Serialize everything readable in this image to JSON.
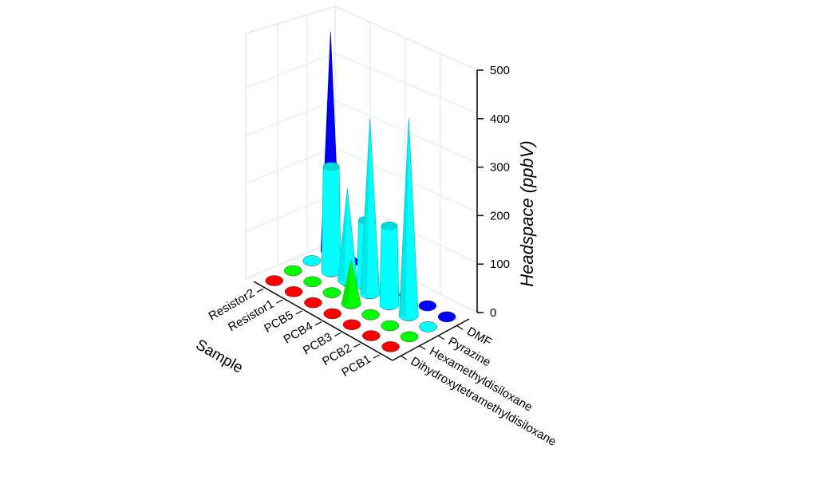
{
  "chart_data": {
    "type": "3d-bar",
    "zlabel": "Headspace (ppbV)",
    "xlabel": "Sample",
    "ylabel": "",
    "zlim": [
      0,
      500
    ],
    "z_ticks": [
      "0",
      "100",
      "200",
      "300",
      "400",
      "500"
    ],
    "samples": [
      "PCB1",
      "PCB2",
      "PCB3",
      "PCB4",
      "PCB5",
      "Resistor1",
      "Resistor2"
    ],
    "compounds": [
      "DMF",
      "Pyrazine",
      "Hexamethyldisiloxane",
      "Dihydroxytetramethyldisiloxane"
    ],
    "compound_colors": {
      "DMF": "#0000ff",
      "Pyrazine": "#00ffff",
      "Hexamethyldisiloxane": "#00ff00",
      "Dihydroxytetramethyldisiloxane": "#ff0000"
    },
    "values": [
      {
        "sample": "Resistor2",
        "compound": "DMF",
        "value": 500,
        "shape": "cone"
      },
      {
        "sample": "PCB5",
        "compound": "Pyrazine",
        "value": 210,
        "shape": "cone"
      },
      {
        "sample": "Resistor1",
        "compound": "Pyrazine",
        "value": 240,
        "shape": "cylinder"
      },
      {
        "sample": "PCB5",
        "compound": "Pyrazine",
        "value": 150,
        "shape": "cylinder"
      },
      {
        "sample": "PCB4",
        "compound": "Pyrazine",
        "value": 400,
        "shape": "cone"
      },
      {
        "sample": "PCB3",
        "compound": "Pyrazine",
        "value": 180,
        "shape": "cylinder"
      },
      {
        "sample": "PCB2",
        "compound": "Pyrazine",
        "value": 450,
        "shape": "cone"
      },
      {
        "sample": "PCB4",
        "compound": "Hexamethyldisiloxane",
        "value": 100,
        "shape": "cone"
      }
    ]
  }
}
